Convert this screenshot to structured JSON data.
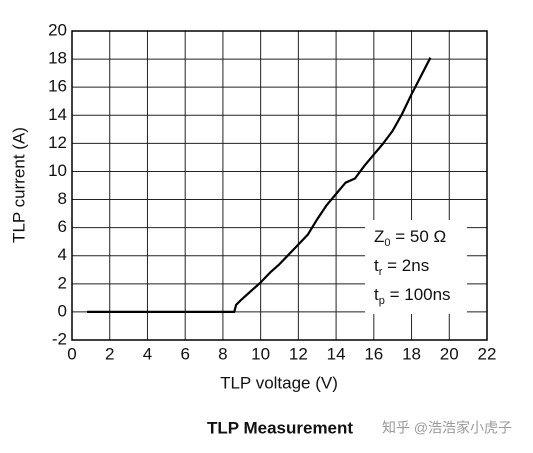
{
  "chart_data": {
    "type": "line",
    "xlabel": "TLP voltage (V)",
    "ylabel": "TLP current (A)",
    "footer_title": "TLP Measurement",
    "watermark": "知乎 @浩浩家小虎子",
    "annotations": [
      {
        "main": "Z",
        "sub": "0",
        "rest": " = 50 Ω"
      },
      {
        "main": "t",
        "sub": "r",
        "rest": " = 2ns"
      },
      {
        "main": "t",
        "sub": "p",
        "rest": " = 100ns"
      }
    ],
    "x": [
      0.8,
      8.6,
      8.7,
      9.0,
      9.5,
      10.0,
      10.5,
      11.0,
      11.5,
      12.0,
      12.5,
      13.0,
      13.5,
      14.0,
      14.5,
      15.0,
      15.5,
      16.0,
      16.5,
      17.0,
      17.5,
      18.0,
      18.5,
      19.0
    ],
    "values": [
      0,
      0,
      0.5,
      0.9,
      1.5,
      2.1,
      2.8,
      3.4,
      4.1,
      4.8,
      5.5,
      6.6,
      7.6,
      8.4,
      9.2,
      9.5,
      10.4,
      11.2,
      12.0,
      12.9,
      14.1,
      15.5,
      16.8,
      18.1
    ],
    "color": "#000000",
    "xlim": [
      0,
      22
    ],
    "xticks": [
      0,
      2,
      4,
      6,
      8,
      10,
      12,
      14,
      16,
      18,
      20,
      22
    ],
    "ylim": [
      -2,
      20
    ],
    "yticks": [
      -2,
      0,
      2,
      4,
      6,
      8,
      10,
      12,
      14,
      16,
      18,
      20
    ],
    "grid": true
  }
}
